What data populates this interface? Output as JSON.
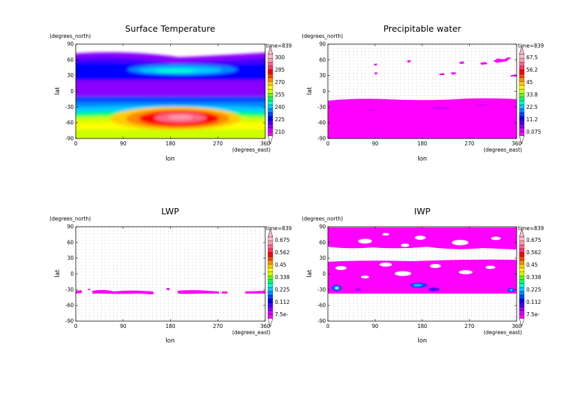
{
  "chart_data": [
    {
      "type": "heatmap",
      "title": "Surface Temperature",
      "xlabel": "lon",
      "ylabel": "lat",
      "x_unit": "(degrees_east)",
      "y_unit": "(degrees_north)",
      "time_label": "time=839",
      "xlim": [
        0,
        360
      ],
      "ylim": [
        -90,
        90
      ],
      "x_ticks": [
        "0",
        "90",
        "180",
        "270",
        "360"
      ],
      "y_ticks": [
        "90",
        "60",
        "30",
        "0",
        "-30",
        "-60",
        "-90"
      ],
      "colorbar_labels": [
        "300",
        "285",
        "270",
        "255",
        "240",
        "225",
        "210"
      ],
      "colorbar_range": [
        195,
        315
      ]
    },
    {
      "type": "heatmap",
      "title": "Precipitable water",
      "xlabel": "lon",
      "ylabel": "lat",
      "x_unit": "(degrees_east)",
      "y_unit": "(degrees_north)",
      "time_label": "time=839",
      "xlim": [
        0,
        360
      ],
      "ylim": [
        -90,
        90
      ],
      "x_ticks": [
        "0",
        "90",
        "180",
        "270",
        "360"
      ],
      "y_ticks": [
        "90",
        "60",
        "30",
        "0",
        "-30",
        "-60",
        "-90"
      ],
      "colorbar_labels": [
        "67.5",
        "56.2",
        "45",
        "33.8",
        "22.5",
        "11.2",
        "0.075"
      ],
      "colorbar_range": [
        0,
        75
      ]
    },
    {
      "type": "heatmap",
      "title": "LWP",
      "xlabel": "lon",
      "ylabel": "lat",
      "x_unit": "(degrees_east)",
      "y_unit": "(degrees_north)",
      "time_label": "time=839",
      "xlim": [
        0,
        360
      ],
      "ylim": [
        -90,
        90
      ],
      "x_ticks": [
        "0",
        "90",
        "180",
        "270",
        "360"
      ],
      "y_ticks": [
        "90",
        "60",
        "30",
        "0",
        "-30",
        "-60",
        "-90"
      ],
      "colorbar_labels": [
        "0.675",
        "0.562",
        "0.45",
        "0.338",
        "0.225",
        "0.112",
        "7.5e-"
      ],
      "colorbar_range": [
        0,
        0.75
      ]
    },
    {
      "type": "heatmap",
      "title": "IWP",
      "xlabel": "lon",
      "ylabel": "lat",
      "x_unit": "(degrees_east)",
      "y_unit": "(degrees_north)",
      "time_label": "time=839",
      "xlim": [
        0,
        360
      ],
      "ylim": [
        -90,
        90
      ],
      "x_ticks": [
        "0",
        "90",
        "180",
        "270",
        "360"
      ],
      "y_ticks": [
        "90",
        "60",
        "30",
        "0",
        "-30",
        "-60",
        "-90"
      ],
      "colorbar_labels": [
        "0.675",
        "0.562",
        "0.45",
        "0.338",
        "0.225",
        "0.112",
        "7.5e-"
      ],
      "colorbar_range": [
        0,
        0.75
      ]
    }
  ],
  "palette": [
    "#ff00ff",
    "#cc00ff",
    "#8800ff",
    "#4400ff",
    "#0000ff",
    "#0044ff",
    "#0088ff",
    "#00ccff",
    "#00ffcc",
    "#00ff66",
    "#66ff00",
    "#ccff00",
    "#ffff00",
    "#ffcc00",
    "#ff8800",
    "#ff4400",
    "#ff0000",
    "#ff3366",
    "#ff6688",
    "#ff99aa",
    "#ffbbcc"
  ],
  "fill_color": "#ff00ff"
}
